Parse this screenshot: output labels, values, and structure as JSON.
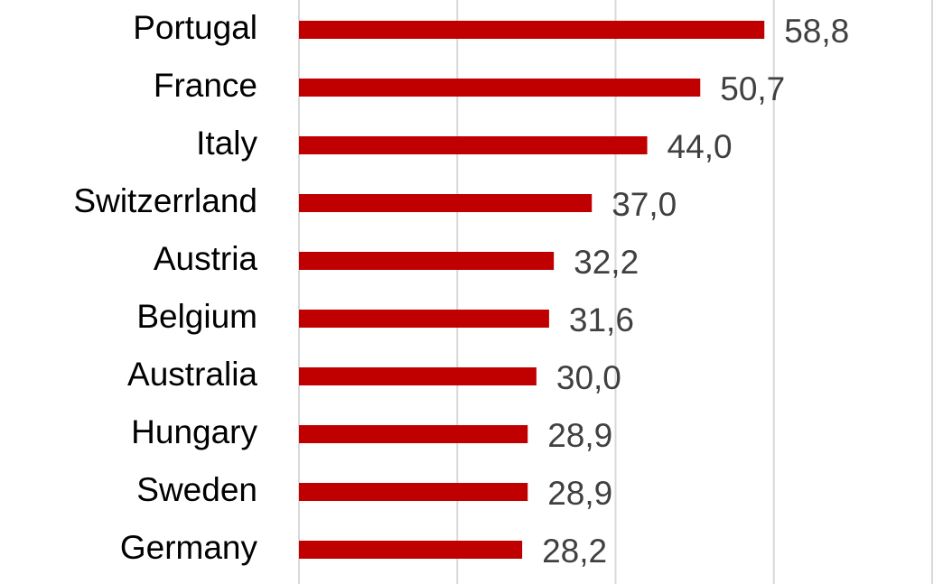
{
  "chart_data": {
    "type": "bar",
    "orientation": "horizontal",
    "categories": [
      "Portugal",
      "France",
      "Italy",
      "Switzerrland",
      "Austria",
      "Belgium",
      "Australia",
      "Hungary",
      "Sweden",
      "Germany"
    ],
    "values": [
      58.8,
      50.7,
      44.0,
      37.0,
      32.2,
      31.6,
      30.0,
      28.9,
      28.9,
      28.2
    ],
    "value_labels": [
      "58,8",
      "50,7",
      "44,0",
      "37,0",
      "32,2",
      "31,6",
      "30,0",
      "28,9",
      "28,9",
      "28,2"
    ],
    "color": "#c00000",
    "xlim": [
      0,
      80
    ],
    "xticks": [
      0,
      20,
      40,
      60,
      80
    ],
    "grid": true
  }
}
